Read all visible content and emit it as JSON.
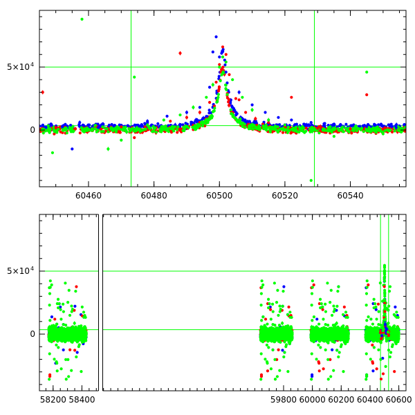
{
  "colors": {
    "red": "#ff0000",
    "blue": "#0000ff",
    "green": "#00ff00",
    "guide": "#00ff00",
    "frame": "#000000"
  },
  "chart_data": [
    {
      "type": "scatter",
      "title": "",
      "xlabel": "",
      "ylabel": "",
      "xlim": [
        60445,
        60557
      ],
      "ylim": [
        -45000,
        95000
      ],
      "x_ticks": [
        60460,
        60480,
        60500,
        60520,
        60540
      ],
      "x_tick_labels": [
        "60460",
        "60480",
        "60500",
        "60520",
        "60540"
      ],
      "y_tick_labels": [
        {
          "value": 0,
          "mantissa": "0",
          "exponent": ""
        },
        {
          "value": 50000,
          "mantissa": "5×10",
          "exponent": "4"
        }
      ],
      "guide_lines": {
        "vertical": [
          60473,
          60529
        ],
        "horizontal": [
          50000,
          3500
        ]
      },
      "series": [
        {
          "color": "red",
          "points": [
            [
              60450,
              2000
            ],
            [
              60456,
              1000
            ],
            [
              60462,
              1500
            ],
            [
              60470,
              2500
            ],
            [
              60478,
              4000
            ],
            [
              60485,
              7000
            ],
            [
              60490,
              10000
            ],
            [
              60494,
              14000
            ],
            [
              60497,
              22000
            ],
            [
              60499,
              38000
            ],
            [
              60500,
              52000
            ],
            [
              60501,
              66000
            ],
            [
              60502,
              60000
            ],
            [
              60503,
              44000
            ],
            [
              60505,
              25000
            ],
            [
              60508,
              14000
            ],
            [
              60511,
              9000
            ],
            [
              60515,
              6000
            ],
            [
              60520,
              3000
            ],
            [
              60530,
              1500
            ],
            [
              60540,
              1000
            ],
            [
              60550,
              800
            ],
            [
              60474,
              -6000
            ],
            [
              60488,
              61000
            ],
            [
              60446,
              30000
            ],
            [
              60506,
              24000
            ],
            [
              60545,
              28000
            ],
            [
              60522,
              26000
            ]
          ]
        },
        {
          "color": "blue",
          "points": [
            [
              60447,
              2000
            ],
            [
              60452,
              2500
            ],
            [
              60455,
              -15000
            ],
            [
              60463,
              2000
            ],
            [
              60472,
              3500
            ],
            [
              60478,
              7000
            ],
            [
              60484,
              11000
            ],
            [
              60490,
              14000
            ],
            [
              60494,
              18000
            ],
            [
              60497,
              34000
            ],
            [
              60498,
              62000
            ],
            [
              60499,
              74000
            ],
            [
              60500,
              58000
            ],
            [
              60502,
              46000
            ],
            [
              60506,
              30000
            ],
            [
              60510,
              20000
            ],
            [
              60514,
              14000
            ],
            [
              60518,
              10000
            ],
            [
              60522,
              8000
            ],
            [
              60528,
              6000
            ],
            [
              60535,
              4000
            ],
            [
              60545,
              3000
            ],
            [
              60554,
              2000
            ]
          ]
        },
        {
          "color": "green",
          "points": [
            [
              60446,
              500
            ],
            [
              60449,
              -18000
            ],
            [
              60455,
              2000
            ],
            [
              60458,
              88000
            ],
            [
              60462,
              1000
            ],
            [
              60466,
              -15000
            ],
            [
              60470,
              -8000
            ],
            [
              60474,
              42000
            ],
            [
              60478,
              4000
            ],
            [
              60483,
              8000
            ],
            [
              60488,
              12000
            ],
            [
              60492,
              18000
            ],
            [
              60496,
              26000
            ],
            [
              60498,
              36000
            ],
            [
              60500,
              50000
            ],
            [
              60501,
              58000
            ],
            [
              60502,
              54000
            ],
            [
              60504,
              40000
            ],
            [
              60507,
              26000
            ],
            [
              60510,
              16000
            ],
            [
              60515,
              8000
            ],
            [
              60520,
              4000
            ],
            [
              60526,
              -2000
            ],
            [
              60528,
              -40000
            ],
            [
              60535,
              -5000
            ],
            [
              60545,
              46000
            ],
            [
              60550,
              -3000
            ],
            [
              60556,
              1000
            ]
          ]
        }
      ]
    },
    {
      "type": "scatter",
      "title": "",
      "xlabel": "",
      "ylabel": "",
      "xlim": [
        58105,
        60650
      ],
      "ylim": [
        -45000,
        95000
      ],
      "x_ticks": [
        58200,
        58400,
        59800,
        60000,
        60200,
        60400,
        60600
      ],
      "x_tick_labels": [
        "58200",
        "58400",
        "59800",
        "60000",
        "60200",
        "60400",
        "60600"
      ],
      "y_tick_labels": [
        {
          "value": 0,
          "mantissa": "0",
          "exponent": ""
        },
        {
          "value": 50000,
          "mantissa": "5×10",
          "exponent": "4"
        }
      ],
      "guide_lines": {
        "vertical": [
          60473,
          60529
        ],
        "horizontal": [
          50000,
          3500
        ]
      },
      "observing_seasons": [
        [
          58170,
          58430
        ],
        [
          59640,
          59860
        ],
        [
          59990,
          60250
        ],
        [
          60370,
          60600
        ]
      ],
      "event_peak": {
        "x": 60501,
        "y": 72000
      },
      "series": [
        {
          "color": "red",
          "points": []
        },
        {
          "color": "blue",
          "points": []
        },
        {
          "color": "green",
          "points": []
        }
      ]
    }
  ]
}
